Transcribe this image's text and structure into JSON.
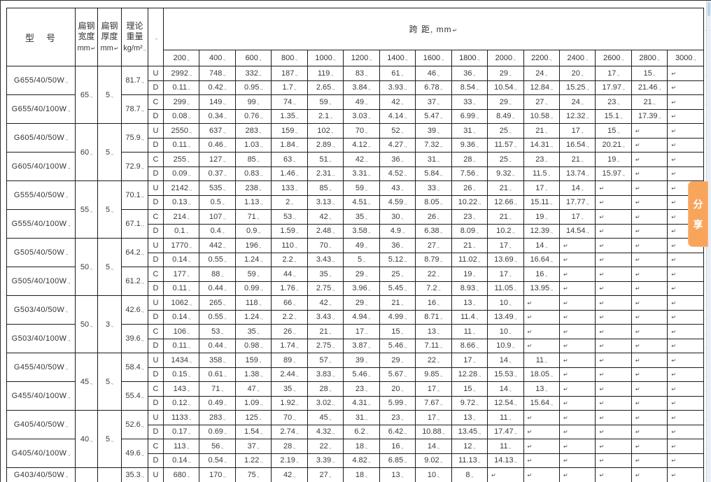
{
  "header": {
    "model_label": "型　号",
    "width_label_lines": [
      "扁钢",
      "宽度",
      "mm"
    ],
    "thickness_label_lines": [
      "扁钢",
      "厚度",
      "mm"
    ],
    "weight_label_lines": [
      "理论",
      "重量",
      "kg/m²"
    ],
    "span_title": "跨 距, mm",
    "span_columns": [
      "200",
      "400",
      "600",
      "800",
      "1000",
      "1200",
      "1400",
      "1600",
      "1800",
      "2000",
      "2200",
      "2400",
      "2600",
      "2800",
      "3000"
    ]
  },
  "marks": {
    "cell_end": ".,",
    "empty_cell": "↵",
    "row_end": ".,",
    "header_row_end": "+"
  },
  "share_button": {
    "label": "分享",
    "label_chars": [
      "分",
      "享"
    ],
    "color": "#F8A55C"
  },
  "groups": [
    {
      "width": "65",
      "thickness": "5",
      "models": [
        {
          "name": "G655/40/50W",
          "weight": "81.7",
          "rows": [
            {
              "letter": "U",
              "values": [
                "2992",
                "748",
                "332",
                "187",
                "119",
                "83",
                "61",
                "46",
                "36",
                "29",
                "24",
                "20",
                "17",
                "15",
                ""
              ]
            },
            {
              "letter": "D",
              "values": [
                "0.11",
                "0.42",
                "0.95",
                "1.7",
                "2.65",
                "3.84",
                "3.93",
                "6.78",
                "8.54",
                "10.54",
                "12.84",
                "15.25",
                "17.97",
                "21.46",
                ""
              ]
            }
          ]
        },
        {
          "name": "G655/40/100W",
          "weight": "78.7",
          "rows": [
            {
              "letter": "C",
              "values": [
                "299",
                "149",
                "99",
                "74",
                "59",
                "49",
                "42",
                "37",
                "33",
                "29",
                "27",
                "24",
                "23",
                "21",
                ""
              ]
            },
            {
              "letter": "D",
              "values": [
                "0.08",
                "0.34",
                "0.76",
                "1.35",
                "2.1",
                "3.03",
                "4.14",
                "5.47",
                "6.99",
                "8.49",
                "10.58",
                "12.32",
                "15.1",
                "17.39",
                ""
              ]
            }
          ]
        }
      ]
    },
    {
      "width": "60",
      "thickness": "5",
      "models": [
        {
          "name": "G605/40/50W",
          "weight": "75.9",
          "rows": [
            {
              "letter": "U",
              "values": [
                "2550",
                "637",
                "283",
                "159",
                "102",
                "70",
                "52",
                "39",
                "31",
                "25",
                "21",
                "17",
                "15",
                "",
                ""
              ]
            },
            {
              "letter": "D",
              "values": [
                "0.11",
                "0.46",
                "1.03",
                "1.84",
                "2.89",
                "4.12",
                "4.27",
                "7.32",
                "9.36",
                "11.57",
                "14.31",
                "16.54",
                "20.21",
                "",
                ""
              ]
            }
          ]
        },
        {
          "name": "G605/40/100W",
          "weight": "72.9",
          "rows": [
            {
              "letter": "C",
              "values": [
                "255",
                "127",
                "85",
                "63",
                "51",
                "42",
                "36",
                "31",
                "28",
                "25",
                "23",
                "21",
                "19",
                "",
                ""
              ]
            },
            {
              "letter": "D",
              "values": [
                "0.09",
                "0.37",
                "0.83",
                "1.46",
                "2.31",
                "3.31",
                "4.52",
                "5.84",
                "7.56",
                "9.32",
                "11.5",
                "13.74",
                "15.97",
                "",
                ""
              ]
            }
          ]
        }
      ]
    },
    {
      "width": "55",
      "thickness": "5",
      "models": [
        {
          "name": "G555/40/50W",
          "weight": "70.1",
          "rows": [
            {
              "letter": "U",
              "values": [
                "2142",
                "535",
                "238",
                "133",
                "85",
                "59",
                "43",
                "33",
                "26",
                "21",
                "17",
                "14",
                "",
                "",
                ""
              ]
            },
            {
              "letter": "D",
              "values": [
                "0.13",
                "0.5",
                "1.13",
                "2",
                "3.13",
                "4.51",
                "4.59",
                "8.05",
                "10.22",
                "12.66",
                "15.11",
                "17.77",
                "",
                "",
                ""
              ]
            }
          ]
        },
        {
          "name": "G555/40/100W",
          "weight": "67.1",
          "rows": [
            {
              "letter": "C",
              "values": [
                "214",
                "107",
                "71",
                "53",
                "42",
                "35",
                "30",
                "26",
                "23",
                "21",
                "19",
                "17",
                "",
                "",
                ""
              ]
            },
            {
              "letter": "D",
              "values": [
                "0.1",
                "0.4",
                "0.9",
                "1.59",
                "2.48",
                "3.58",
                "4.9",
                "6.38",
                "8.09",
                "10.2",
                "12.39",
                "14.54",
                "",
                "",
                ""
              ]
            }
          ]
        }
      ]
    },
    {
      "width": "50",
      "thickness": "5",
      "models": [
        {
          "name": "G505/40/50W",
          "weight": "64.2",
          "rows": [
            {
              "letter": "U",
              "values": [
                "1770",
                "442",
                "196",
                "110",
                "70",
                "49",
                "36",
                "27",
                "21",
                "17",
                "14",
                "",
                "",
                "",
                ""
              ]
            },
            {
              "letter": "D",
              "values": [
                "0.14",
                "0.55",
                "1.24",
                "2.2",
                "3.43",
                "5",
                "5.12",
                "8.79",
                "11.02",
                "13.69",
                "16.64",
                "",
                "",
                "",
                ""
              ]
            }
          ]
        },
        {
          "name": "G505/40/100W",
          "weight": "61.2",
          "rows": [
            {
              "letter": "C",
              "values": [
                "177",
                "88",
                "59",
                "44",
                "35",
                "29",
                "25",
                "22",
                "19",
                "17",
                "16",
                "",
                "",
                "",
                ""
              ]
            },
            {
              "letter": "D",
              "values": [
                "0.11",
                "0.44",
                "0.99",
                "1.76",
                "2.75",
                "3.96",
                "5.45",
                "7.2",
                "8.93",
                "11.05",
                "13.95",
                "",
                "",
                "",
                ""
              ]
            }
          ]
        }
      ]
    },
    {
      "width": "50",
      "thickness": "3",
      "models": [
        {
          "name": "G503/40/50W",
          "weight": "42.6",
          "rows": [
            {
              "letter": "U",
              "values": [
                "1062",
                "265",
                "118",
                "66",
                "42",
                "29",
                "21",
                "16",
                "13",
                "10",
                "",
                "",
                "",
                "",
                ""
              ]
            },
            {
              "letter": "D",
              "values": [
                "0.14",
                "0.55",
                "1.24",
                "2.2",
                "3.43",
                "4.94",
                "4.99",
                "8.71",
                "11.4",
                "13.49",
                "",
                "",
                "",
                "",
                ""
              ]
            }
          ]
        },
        {
          "name": "G503/40/100W",
          "weight": "39.6",
          "rows": [
            {
              "letter": "C",
              "values": [
                "106",
                "53",
                "35",
                "26",
                "21",
                "17",
                "15",
                "13",
                "11",
                "10",
                "",
                "",
                "",
                "",
                ""
              ]
            },
            {
              "letter": "D",
              "values": [
                "0.11",
                "0.44",
                "0.98",
                "1.74",
                "2.75",
                "3.87",
                "5.46",
                "7.11",
                "8.66",
                "10.9",
                "",
                "",
                "",
                "",
                ""
              ]
            }
          ]
        }
      ]
    },
    {
      "width": "45",
      "thickness": "5",
      "models": [
        {
          "name": "G455/40/50W",
          "weight": "58.4",
          "rows": [
            {
              "letter": "U",
              "values": [
                "1434",
                "358",
                "159",
                "89",
                "57",
                "39",
                "29",
                "22",
                "17",
                "14",
                "11",
                "",
                "",
                "",
                ""
              ]
            },
            {
              "letter": "D",
              "values": [
                "0.15",
                "0.61",
                "1.38",
                "2.44",
                "3.83",
                "5.46",
                "5.67",
                "9.85",
                "12.28",
                "15.53",
                "18.05",
                "",
                "",
                "",
                ""
              ]
            }
          ]
        },
        {
          "name": "G455/40/100W",
          "weight": "55.4",
          "rows": [
            {
              "letter": "C",
              "values": [
                "143",
                "71",
                "47",
                "35",
                "28",
                "23",
                "20",
                "17",
                "15",
                "14",
                "13",
                "",
                "",
                "",
                ""
              ]
            },
            {
              "letter": "D",
              "values": [
                "0.12",
                "0.49",
                "1.09",
                "1.92",
                "3.02",
                "4.31",
                "5.99",
                "7.67",
                "9.72",
                "12.54",
                "15.64",
                "",
                "",
                "",
                ""
              ]
            }
          ]
        }
      ]
    },
    {
      "width": "40",
      "thickness": "5",
      "models": [
        {
          "name": "G405/40/50W",
          "weight": "52.6",
          "rows": [
            {
              "letter": "U",
              "values": [
                "1133",
                "283",
                "125",
                "70",
                "45",
                "31",
                "23",
                "17",
                "13",
                "11",
                "",
                "",
                "",
                "",
                ""
              ]
            },
            {
              "letter": "D",
              "values": [
                "0.17",
                "0.69",
                "1.54",
                "2.74",
                "4.32",
                "6.2",
                "6.42",
                "10.88",
                "13.45",
                "17.47",
                "",
                "",
                "",
                "",
                ""
              ]
            }
          ]
        },
        {
          "name": "G405/40/100W",
          "weight": "49.6",
          "rows": [
            {
              "letter": "C",
              "values": [
                "113",
                "56",
                "37",
                "28",
                "22",
                "18",
                "16",
                "14",
                "12",
                "11",
                "",
                "",
                "",
                "",
                ""
              ]
            },
            {
              "letter": "D",
              "values": [
                "0.14",
                "0.54",
                "1.22",
                "2.19",
                "3.39",
                "4.82",
                "6.85",
                "9.02",
                "11.13",
                "14.13",
                "",
                "",
                "",
                "",
                ""
              ]
            }
          ]
        }
      ]
    },
    {
      "width": "",
      "thickness": "",
      "models": [
        {
          "name": "G403/40/50W",
          "weight": "35.3",
          "rows": [
            {
              "letter": "U",
              "values": [
                "680",
                "170",
                "75",
                "42",
                "27",
                "18",
                "13",
                "10",
                "8",
                "",
                "",
                "",
                "",
                "",
                ""
              ]
            }
          ]
        }
      ]
    }
  ]
}
